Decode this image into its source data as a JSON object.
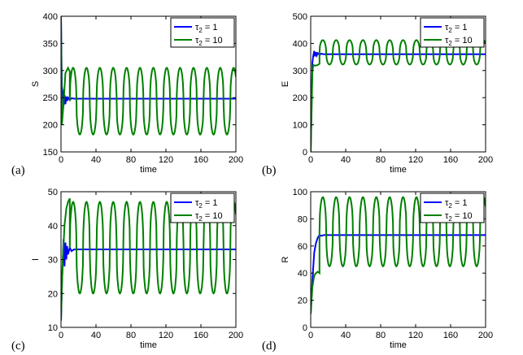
{
  "chart_data": [
    {
      "panel": "(a)",
      "type": "line",
      "xlabel": "time",
      "ylabel": "S",
      "xlim": [
        0,
        200
      ],
      "ylim": [
        150,
        400
      ],
      "xticks": [
        0,
        40,
        80,
        120,
        160,
        200
      ],
      "yticks": [
        150,
        200,
        250,
        300,
        350,
        400
      ],
      "legend_position": "top-right",
      "series": [
        {
          "name": "τ2 = 1",
          "color": "#0000ff",
          "points": [
            [
              0,
              400
            ],
            [
              0.5,
              330
            ],
            [
              1,
              270
            ],
            [
              2,
              260
            ],
            [
              3,
              235
            ],
            [
              4,
              255
            ],
            [
              5,
              238
            ],
            [
              6,
              252
            ],
            [
              7,
              244
            ],
            [
              8,
              250
            ],
            [
              10,
              246
            ],
            [
              12,
              249
            ],
            [
              15,
              248
            ],
            [
              200,
              248
            ]
          ]
        },
        {
          "name": "τ2 = 10",
          "color": "#008000",
          "model": "oscillation",
          "start": [
            [
              0,
              400
            ],
            [
              1,
              200
            ],
            [
              3,
              240
            ],
            [
              5,
              295
            ],
            [
              8,
              305
            ],
            [
              10,
              298
            ]
          ],
          "period": 15.3,
          "phase_start": 10,
          "high": 305,
          "low": 182,
          "end": 200
        }
      ]
    },
    {
      "panel": "(b)",
      "type": "line",
      "xlabel": "time",
      "ylabel": "E",
      "xlim": [
        0,
        200
      ],
      "ylim": [
        0,
        500
      ],
      "xticks": [
        0,
        40,
        80,
        120,
        160,
        200
      ],
      "yticks": [
        0,
        100,
        200,
        300,
        400,
        500
      ],
      "legend_position": "top-right",
      "series": [
        {
          "name": "τ2 = 1",
          "color": "#0000ff",
          "points": [
            [
              0,
              0
            ],
            [
              1,
              180
            ],
            [
              2,
              330
            ],
            [
              3,
              355
            ],
            [
              4,
              372
            ],
            [
              5,
              352
            ],
            [
              6,
              368
            ],
            [
              7,
              356
            ],
            [
              8,
              364
            ],
            [
              10,
              358
            ],
            [
              12,
              362
            ],
            [
              15,
              360
            ],
            [
              200,
              360
            ]
          ]
        },
        {
          "name": "τ2 = 10",
          "color": "#008000",
          "model": "oscillation",
          "start": [
            [
              0,
              0
            ],
            [
              1,
              150
            ],
            [
              2,
              300
            ],
            [
              3,
              320
            ],
            [
              5,
              318
            ],
            [
              8,
              320
            ],
            [
              10,
              325
            ]
          ],
          "period": 15.3,
          "phase_start": 10,
          "high": 412,
          "low": 322,
          "end": 200
        }
      ]
    },
    {
      "panel": "(c)",
      "type": "line",
      "xlabel": "time",
      "ylabel": "I",
      "xlim": [
        0,
        200
      ],
      "ylim": [
        10,
        50
      ],
      "xticks": [
        0,
        40,
        80,
        120,
        160,
        200
      ],
      "yticks": [
        10,
        20,
        30,
        40,
        50
      ],
      "legend_position": "top-right",
      "series": [
        {
          "name": "τ2 = 1",
          "color": "#0000ff",
          "points": [
            [
              0,
              12
            ],
            [
              1,
              22
            ],
            [
              2,
              30
            ],
            [
              3,
              36
            ],
            [
              4,
              28
            ],
            [
              5,
              35
            ],
            [
              6,
              30
            ],
            [
              7,
              34
            ],
            [
              8,
              31.5
            ],
            [
              10,
              33.5
            ],
            [
              12,
              32.5
            ],
            [
              15,
              33
            ],
            [
              200,
              33
            ]
          ]
        },
        {
          "name": "τ2 = 10",
          "color": "#008000",
          "model": "oscillation",
          "start": [
            [
              0,
              12
            ],
            [
              1,
              22
            ],
            [
              2,
              30
            ],
            [
              4,
              40
            ],
            [
              6,
              45
            ],
            [
              8,
              47
            ],
            [
              10,
              48
            ]
          ],
          "period": 15.3,
          "phase_start": 10,
          "high": 47,
          "low": 20,
          "end": 200
        }
      ]
    },
    {
      "panel": "(d)",
      "type": "line",
      "xlabel": "time",
      "ylabel": "R",
      "xlim": [
        0,
        200
      ],
      "ylim": [
        0,
        100
      ],
      "xticks": [
        0,
        40,
        80,
        120,
        160,
        200
      ],
      "yticks": [
        0,
        20,
        40,
        60,
        80,
        100
      ],
      "legend_position": "top-right",
      "series": [
        {
          "name": "τ2 = 1",
          "color": "#0000ff",
          "points": [
            [
              0,
              10
            ],
            [
              2,
              35
            ],
            [
              4,
              55
            ],
            [
              6,
              62
            ],
            [
              8,
              66
            ],
            [
              10,
              68
            ],
            [
              12,
              67.5
            ],
            [
              15,
              68
            ],
            [
              200,
              68
            ]
          ]
        },
        {
          "name": "τ2 = 10",
          "color": "#008000",
          "model": "oscillation",
          "start": [
            [
              0,
              10
            ],
            [
              2,
              30
            ],
            [
              4,
              38
            ],
            [
              6,
              40
            ],
            [
              8,
              41
            ],
            [
              10,
              40
            ]
          ],
          "period": 15.3,
          "phase_start": 10,
          "high": 96,
          "low": 45,
          "end": 200
        }
      ]
    }
  ]
}
